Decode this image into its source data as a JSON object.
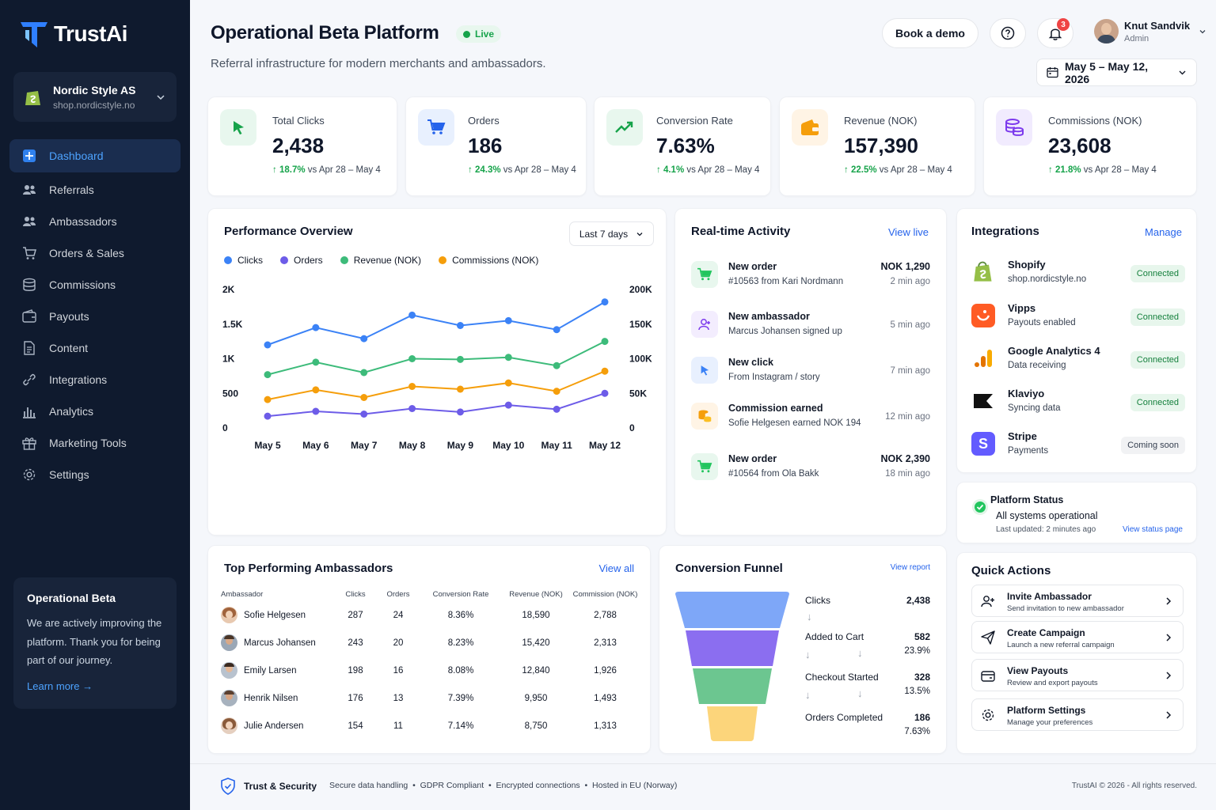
{
  "brand": {
    "name": "TrustAi"
  },
  "store": {
    "name": "Nordic Style AS",
    "url": "shop.nordicstyle.no"
  },
  "nav": [
    {
      "label": "Dashboard",
      "icon": "dashboard-icon"
    },
    {
      "label": "Referrals",
      "icon": "users-icon"
    },
    {
      "label": "Ambassadors",
      "icon": "users-icon"
    },
    {
      "label": "Orders & Sales",
      "icon": "cart-icon"
    },
    {
      "label": "Commissions",
      "icon": "coins-icon"
    },
    {
      "label": "Payouts",
      "icon": "wallet-icon"
    },
    {
      "label": "Content",
      "icon": "document-icon"
    },
    {
      "label": "Integrations",
      "icon": "link-icon"
    },
    {
      "label": "Analytics",
      "icon": "bar-chart-icon"
    },
    {
      "label": "Marketing Tools",
      "icon": "gift-icon"
    },
    {
      "label": "Settings",
      "icon": "gear-icon"
    }
  ],
  "beta_card": {
    "title": "Operational Beta",
    "text": "We are actively improving the platform. Thank you for being part of our journey.",
    "link": "Learn more →"
  },
  "header": {
    "title": "Operational Beta Platform",
    "status": "Live",
    "subtitle": "Referral infrastructure for modern merchants and ambassadors.",
    "demo_button": "Book a demo",
    "notification_count": "3",
    "user_name": "Knut Sandvik",
    "user_role": "Admin",
    "date_range": "May 5 – May 12, 2026"
  },
  "stats": [
    {
      "label": "Total Clicks",
      "value": "2,438",
      "change": "18.7%",
      "period": "vs Apr 28 – May 4",
      "color": "#16a34a"
    },
    {
      "label": "Orders",
      "value": "186",
      "change": "24.3%",
      "period": "vs Apr 28 – May 4",
      "color": "#2563eb"
    },
    {
      "label": "Conversion Rate",
      "value": "7.63%",
      "change": "4.1%",
      "period": "vs Apr 28 – May 4",
      "color": "#16a34a"
    },
    {
      "label": "Revenue (NOK)",
      "value": "157,390",
      "change": "22.5%",
      "period": "vs Apr 28 – May 4",
      "color": "#f59e0b"
    },
    {
      "label": "Commissions (NOK)",
      "value": "23,608",
      "change": "21.8%",
      "period": "vs Apr 28 – May 4",
      "color": "#7c3aed"
    }
  ],
  "performance": {
    "title": "Performance Overview",
    "range_select": "Last 7 days"
  },
  "chart_data": {
    "type": "line",
    "categories": [
      "May 5",
      "May 6",
      "May 7",
      "May 8",
      "May 9",
      "May 10",
      "May 11",
      "May 12"
    ],
    "y_left_ticks": [
      "2K",
      "1.5K",
      "1K",
      "500",
      "0"
    ],
    "y_right_ticks": [
      "200K",
      "150K",
      "100K",
      "50K",
      "0"
    ],
    "y_left_range": [
      0,
      2000
    ],
    "y_right_range": [
      0,
      200000
    ],
    "legend_position": "top-left",
    "grid": false,
    "series": [
      {
        "name": "Clicks",
        "axis": "left",
        "color": "#3b82f6",
        "values": [
          1200,
          1450,
          1290,
          1630,
          1480,
          1550,
          1420,
          1820
        ]
      },
      {
        "name": "Orders",
        "axis": "left",
        "color": "#6d5ce8",
        "values": [
          170,
          240,
          200,
          280,
          230,
          330,
          270,
          500
        ]
      },
      {
        "name": "Revenue (NOK)",
        "axis": "right",
        "color": "#3dbb7a",
        "values": [
          77000,
          95000,
          80000,
          100000,
          99000,
          102000,
          90000,
          125000
        ]
      },
      {
        "name": "Commissions (NOK)",
        "axis": "right",
        "color": "#f59e0b",
        "values": [
          41000,
          55000,
          44000,
          60000,
          56000,
          65000,
          53000,
          82000
        ]
      }
    ]
  },
  "activity": {
    "title": "Real-time Activity",
    "link": "View live",
    "items": [
      {
        "title": "New order",
        "sub": "#10563 from Kari Nordmann",
        "amount": "NOK 1,290",
        "time": "2 min ago",
        "icon": "cart-icon",
        "color": "#22c55e"
      },
      {
        "title": "New ambassador",
        "sub": "Marcus Johansen signed up",
        "amount": "",
        "time": "5 min ago",
        "icon": "user-plus-icon",
        "color": "#7c3aed"
      },
      {
        "title": "New click",
        "sub": "From Instagram / story",
        "amount": "",
        "time": "7 min ago",
        "icon": "cursor-icon",
        "color": "#3b82f6"
      },
      {
        "title": "Commission earned",
        "sub": "Sofie Helgesen earned NOK 194",
        "amount": "",
        "time": "12 min ago",
        "icon": "coins-icon",
        "color": "#f59e0b"
      },
      {
        "title": "New order",
        "sub": "#10564 from Ola Bakk",
        "amount": "NOK 2,390",
        "time": "18 min ago",
        "icon": "cart-icon",
        "color": "#22c55e"
      }
    ]
  },
  "integrations": {
    "title": "Integrations",
    "link": "Manage",
    "items": [
      {
        "name": "Shopify",
        "sub": "shop.nordicstyle.no",
        "status": "Connected",
        "icon": "shopify-icon"
      },
      {
        "name": "Vipps",
        "sub": "Payouts enabled",
        "status": "Connected",
        "icon": "vipps-icon"
      },
      {
        "name": "Google Analytics 4",
        "sub": "Data receiving",
        "status": "Connected",
        "icon": "google-analytics-icon"
      },
      {
        "name": "Klaviyo",
        "sub": "Syncing data",
        "status": "Connected",
        "icon": "klaviyo-icon"
      },
      {
        "name": "Stripe",
        "sub": "Payments",
        "status": "Coming soon",
        "icon": "stripe-icon"
      }
    ]
  },
  "platform_status": {
    "title": "Platform Status",
    "text": "All systems operational",
    "updated": "Last updated: 2 minutes ago",
    "link": "View status page"
  },
  "ambassadors": {
    "title": "Top Performing Ambassadors",
    "link": "View all",
    "columns": [
      "Ambassador",
      "Clicks",
      "Orders",
      "Conversion Rate",
      "Revenue (NOK)",
      "Commission (NOK)"
    ],
    "rows": [
      [
        "Sofie Helgesen",
        "287",
        "24",
        "8.36%",
        "18,590",
        "2,788"
      ],
      [
        "Marcus Johansen",
        "243",
        "20",
        "8.23%",
        "15,420",
        "2,313"
      ],
      [
        "Emily Larsen",
        "198",
        "16",
        "8.08%",
        "12,840",
        "1,926"
      ],
      [
        "Henrik Nilsen",
        "176",
        "13",
        "7.39%",
        "9,950",
        "1,493"
      ],
      [
        "Julie Andersen",
        "154",
        "11",
        "7.14%",
        "8,750",
        "1,313"
      ]
    ]
  },
  "funnel": {
    "title": "Conversion Funnel",
    "link": "View report",
    "stages": [
      {
        "label": "Clicks",
        "value": "2,438",
        "pct": ""
      },
      {
        "label": "Added to Cart",
        "value": "582",
        "pct": "23.9%"
      },
      {
        "label": "Checkout Started",
        "value": "328",
        "pct": "13.5%"
      },
      {
        "label": "Orders Completed",
        "value": "186",
        "pct": "7.63%"
      }
    ]
  },
  "quick_actions": {
    "title": "Quick Actions",
    "items": [
      {
        "title": "Invite Ambassador",
        "sub": "Send invitation to new ambassador",
        "icon": "user-plus-icon"
      },
      {
        "title": "Create Campaign",
        "sub": "Launch a new referral campaign",
        "icon": "send-icon"
      },
      {
        "title": "View Payouts",
        "sub": "Review and export payouts",
        "icon": "wallet-icon"
      },
      {
        "title": "Platform Settings",
        "sub": "Manage your preferences",
        "icon": "gear-icon"
      }
    ]
  },
  "footer": {
    "security": "Trust & Security",
    "items": "Secure data handling  •  GDPR Compliant  •  Encrypted connections  •  Hosted in EU (Norway)",
    "copyright": "TrustAI © 2026 - All rights reserved."
  }
}
